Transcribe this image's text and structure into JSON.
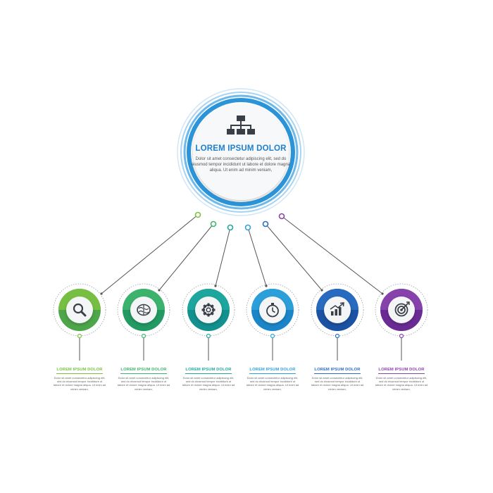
{
  "center": {
    "title": "LOREM IPSUM DOLOR",
    "body": "Dolor sit amet consectetur adipiscing elit, sed do eiusmod tempor incididunt ut labore et dolore magna aliqua. Ut enim ad minim veniam,",
    "icon": "hierarchy-icon",
    "color": "#2b94d9"
  },
  "nodes": [
    {
      "icon": "magnifier-icon",
      "color": "#7cc242",
      "color_dark": "#4ea64a",
      "title": "LOREM IPSUM DOLOR",
      "body": "Dolor sit amet consectetur adipiscing elit, sed do eiusmod tempor incididunt ut labore et dolore magna aliqua. Ut enim ad minim veniam,"
    },
    {
      "icon": "brain-icon",
      "color": "#3fb66d",
      "color_dark": "#239a63",
      "title": "LOREM IPSUM DOLOR",
      "body": "Dolor sit amet consectetur adipiscing elit, sed do eiusmod tempor incididunt ut labore et dolore magna aliqua. Ut enim ad minim veniam,"
    },
    {
      "icon": "gear-icon",
      "color": "#1fa9a0",
      "color_dark": "#13918f",
      "title": "LOREM IPSUM DOLOR",
      "body": "Dolor sit amet consectetur adipiscing elit, sed do eiusmod tempor incididunt ut labore et dolore magna aliqua. Ut enim ad minim veniam,"
    },
    {
      "icon": "stopwatch-icon",
      "color": "#2ea2dc",
      "color_dark": "#1a86c9",
      "title": "LOREM IPSUM DOLOR",
      "body": "Dolor sit amet consectetur adipiscing elit, sed do eiusmod tempor incididunt ut labore et dolore magna aliqua. Ut enim ad minim veniam,"
    },
    {
      "icon": "growth-chart-icon",
      "color": "#2a6dc2",
      "color_dark": "#1b52a3",
      "title": "LOREM IPSUM DOLOR",
      "body": "Dolor sit amet consectetur adipiscing elit, sed do eiusmod tempor incididunt ut labore et dolore magna aliqua. Ut enim ad minim veniam,"
    },
    {
      "icon": "target-icon",
      "color": "#8a44ad",
      "color_dark": "#6a2a93",
      "title": "LOREM IPSUM DOLOR",
      "body": "Dolor sit amet consectetur adipiscing elit, sed do eiusmod tempor incididunt ut labore et dolore magna aliqua. Ut enim ad minim veniam,"
    }
  ]
}
